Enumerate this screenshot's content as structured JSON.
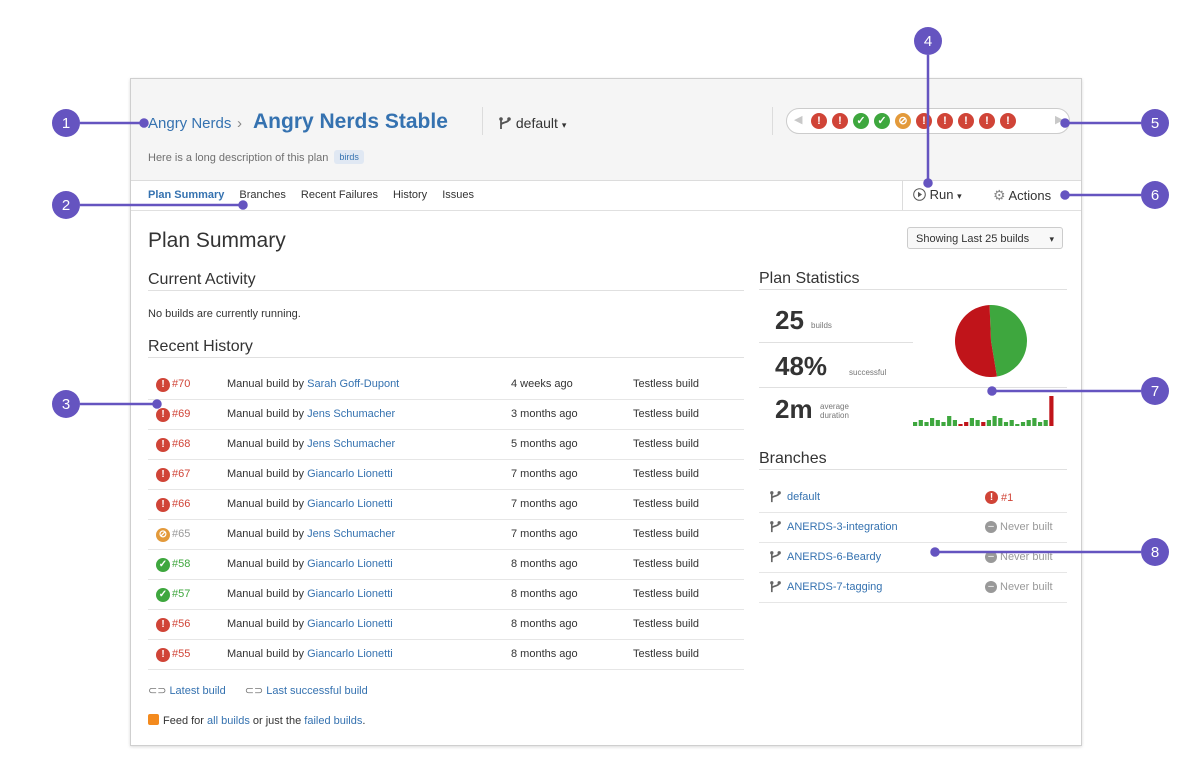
{
  "header": {
    "project_name": "Angry Nerds",
    "separator": "›",
    "plan_name": "Angry Nerds Stable",
    "branch_selector": "default",
    "description": "Here is a long description of this plan",
    "label": "birds"
  },
  "build_strip": {
    "builds": [
      "failed",
      "failed",
      "success",
      "success",
      "unknown",
      "failed",
      "failed",
      "failed",
      "failed",
      "failed"
    ]
  },
  "tabs": [
    {
      "label": "Plan Summary",
      "active": true
    },
    {
      "label": "Branches"
    },
    {
      "label": "Recent Failures"
    },
    {
      "label": "History"
    },
    {
      "label": "Issues"
    }
  ],
  "toolbar": {
    "run_label": "Run",
    "actions_label": "Actions"
  },
  "page_title": "Plan Summary",
  "showing_label": "Showing Last 25 builds",
  "current_activity": {
    "heading": "Current Activity",
    "message": "No builds are currently running."
  },
  "recent_history": {
    "heading": "Recent History",
    "rows": [
      {
        "number": "#70",
        "status": "failed",
        "reason": "Manual build by ",
        "user": "Sarah Goff-Dupont",
        "when": "4 weeks ago",
        "tests": "Testless build"
      },
      {
        "number": "#69",
        "status": "failed",
        "reason": "Manual build by ",
        "user": "Jens Schumacher",
        "when": "3 months ago",
        "tests": "Testless build"
      },
      {
        "number": "#68",
        "status": "failed",
        "reason": "Manual build by ",
        "user": "Jens Schumacher",
        "when": "5 months ago",
        "tests": "Testless build"
      },
      {
        "number": "#67",
        "status": "failed",
        "reason": "Manual build by ",
        "user": "Giancarlo Lionetti",
        "when": "7 months ago",
        "tests": "Testless build"
      },
      {
        "number": "#66",
        "status": "failed",
        "reason": "Manual build by ",
        "user": "Giancarlo Lionetti",
        "when": "7 months ago",
        "tests": "Testless build"
      },
      {
        "number": "#65",
        "status": "unknown",
        "reason": "Manual build by ",
        "user": "Jens Schumacher",
        "when": "7 months ago",
        "tests": "Testless build"
      },
      {
        "number": "#58",
        "status": "success",
        "reason": "Manual build by ",
        "user": "Giancarlo Lionetti",
        "when": "8 months ago",
        "tests": "Testless build"
      },
      {
        "number": "#57",
        "status": "success",
        "reason": "Manual build by ",
        "user": "Giancarlo Lionetti",
        "when": "8 months ago",
        "tests": "Testless build"
      },
      {
        "number": "#56",
        "status": "failed",
        "reason": "Manual build by ",
        "user": "Giancarlo Lionetti",
        "when": "8 months ago",
        "tests": "Testless build"
      },
      {
        "number": "#55",
        "status": "failed",
        "reason": "Manual build by ",
        "user": "Giancarlo Lionetti",
        "when": "8 months ago",
        "tests": "Testless build"
      }
    ]
  },
  "footer": {
    "latest_build": "Latest build",
    "last_successful": "Last successful build",
    "feed_prefix": "Feed for ",
    "feed_all": "all builds",
    "feed_mid": " or just the ",
    "feed_failed": "failed builds",
    "feed_suffix": "."
  },
  "plan_statistics": {
    "heading": "Plan Statistics",
    "builds_value": "25",
    "builds_label": "builds",
    "success_value": "48%",
    "success_label": "successful",
    "duration_value": "2m",
    "duration_label_1": "average",
    "duration_label_2": "duration"
  },
  "chart_data": {
    "type": "pie",
    "categories": [
      "failed",
      "successful"
    ],
    "values": [
      52,
      48
    ],
    "colors": [
      "#c0141a",
      "#3ea73e"
    ],
    "title": ""
  },
  "duration_sparkline": {
    "type": "bar",
    "values": [
      2,
      3,
      2,
      4,
      3,
      2,
      5,
      3,
      1,
      2,
      4,
      3,
      2,
      3,
      5,
      4,
      2,
      3,
      1,
      2,
      3,
      4,
      2,
      3,
      15
    ],
    "colors": [
      "#3ea73e",
      "#3ea73e",
      "#3ea73e",
      "#3ea73e",
      "#3ea73e",
      "#3ea73e",
      "#3ea73e",
      "#3ea73e",
      "#c0141a",
      "#c0141a",
      "#3ea73e",
      "#3ea73e",
      "#c0141a",
      "#3ea73e",
      "#3ea73e",
      "#3ea73e",
      "#3ea73e",
      "#3ea73e",
      "#3ea73e",
      "#3ea73e",
      "#3ea73e",
      "#3ea73e",
      "#3ea73e",
      "#3ea73e",
      "#c0141a"
    ]
  },
  "branches": {
    "heading": "Branches",
    "rows": [
      {
        "name": "default",
        "status": "failed",
        "status_text": "#1"
      },
      {
        "name": "ANERDS-3-integration",
        "status": "never",
        "status_text": "Never built"
      },
      {
        "name": "ANERDS-6-Beardy",
        "status": "never",
        "status_text": "Never built"
      },
      {
        "name": "ANERDS-7-tagging",
        "status": "never",
        "status_text": "Never built"
      }
    ]
  },
  "callouts": [
    "1",
    "2",
    "3",
    "4",
    "5",
    "6",
    "7",
    "8"
  ],
  "colors": {
    "accent": "#3572b0",
    "callout": "#6554c0",
    "failed": "#d04437",
    "success": "#3ea73e"
  }
}
